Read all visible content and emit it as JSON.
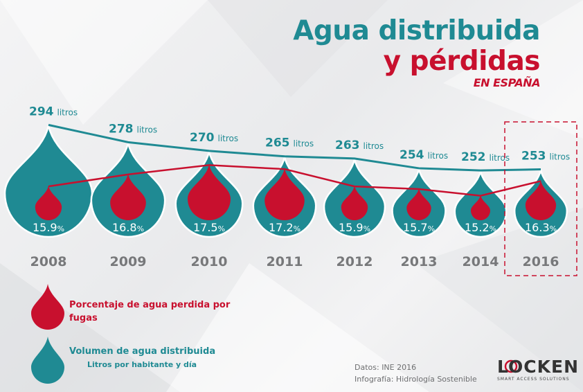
{
  "title": {
    "line1": "Agua distribuida",
    "line2": "y pérdidas",
    "line3": "EN ESPAÑA"
  },
  "chart_data": {
    "type": "line",
    "categories": [
      "2008",
      "2009",
      "2010",
      "2011",
      "2012",
      "2013",
      "2014",
      "2016"
    ],
    "series": [
      {
        "name": "Volumen de agua distribuida",
        "unit": "litros",
        "values": [
          294,
          278,
          270,
          265,
          263,
          254,
          252,
          253
        ],
        "labels": [
          "294",
          "278",
          "270",
          "265",
          "263",
          "254",
          "252",
          "253"
        ],
        "color": "#1f8a93"
      },
      {
        "name": "Porcentaje de agua perdida por fugas",
        "unit": "%",
        "values": [
          15.9,
          16.8,
          17.5,
          17.2,
          15.9,
          15.7,
          15.2,
          16.3
        ],
        "labels": [
          "15.9",
          "16.8",
          "17.5",
          "17.2",
          "15.9",
          "15.7",
          "15.2",
          "16.3"
        ],
        "color": "#c8102e"
      }
    ],
    "highlight_category": "2016"
  },
  "legend": {
    "red_label": "Porcentaje de agua perdida por fugas",
    "teal_label": "Volumen de agua distribuida",
    "teal_sub": "Litros por habitante y día"
  },
  "source": {
    "line1": "Datos: INE 2016",
    "line2": "Infografía: Hidrología Sostenible"
  },
  "logo": {
    "name": "LOCKEN",
    "tagline": "SMART ACCESS SOLUTIONS"
  },
  "colors": {
    "teal": "#1f8a93",
    "red": "#c8102e",
    "year_gray": "#77787a"
  }
}
